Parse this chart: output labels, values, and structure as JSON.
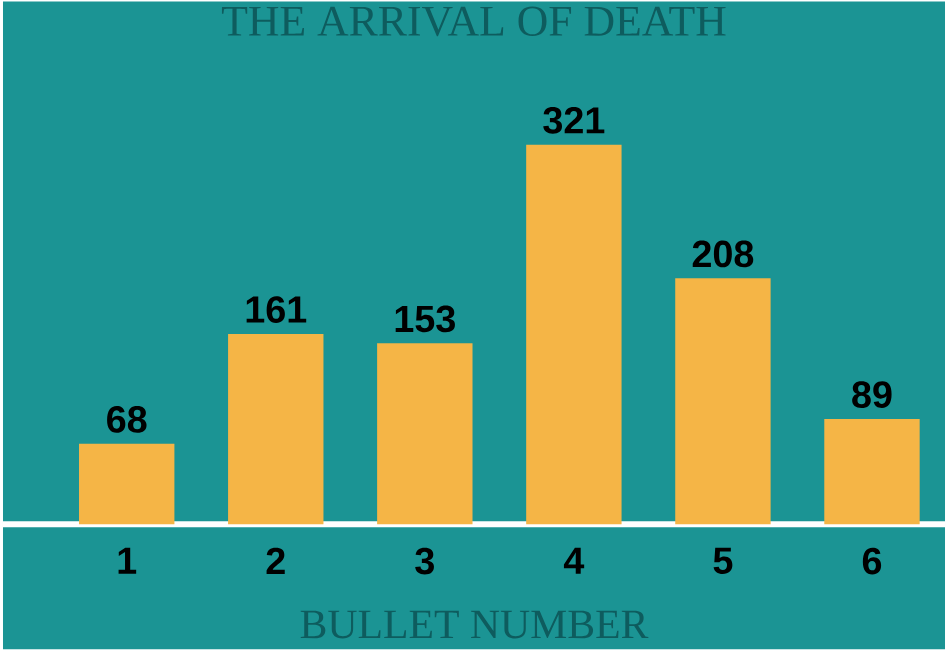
{
  "chart_data": {
    "type": "bar",
    "title": "THE ARRIVAL OF DEATH",
    "xlabel": "BULLET NUMBER",
    "categories": [
      "1",
      "2",
      "3",
      "4",
      "5",
      "6"
    ],
    "values": [
      68,
      161,
      153,
      321,
      208,
      89
    ],
    "color": "#f5b546",
    "data_labels": true
  }
}
